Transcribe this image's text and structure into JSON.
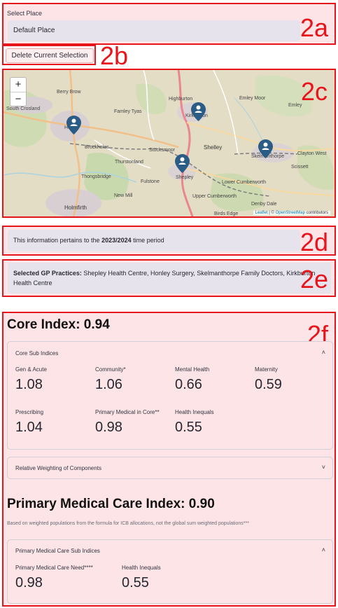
{
  "select_place": {
    "label": "Select Place",
    "value": "Default Place",
    "tag": "2a"
  },
  "delete_button": {
    "label": "Delete Current Selection",
    "tag": "2b"
  },
  "map": {
    "tag": "2c",
    "zoom_in": "+",
    "zoom_out": "−",
    "attribution": {
      "leaflet": "Leaflet",
      "sep": " | © ",
      "osm": "OpenStreetMap",
      "suffix": " contributors"
    },
    "places": [
      "Berry Brow",
      "South Crosland",
      "Highburton",
      "Emley Moor",
      "Emley",
      "Famley Tyas",
      "Kirkburton",
      "Honley",
      "Brockholes",
      "Stocksmoor",
      "Shelley",
      "Skelmanthorpe",
      "Clayton West",
      "Thurstonland",
      "Thongsbridge",
      "Fulstone",
      "Shepley",
      "Scissett",
      "Lower Cumberworth",
      "New Mill",
      "Upper Cumberworth",
      "Denby Dale",
      "Holmfirth",
      "Birds Edge"
    ],
    "marker_icon": "map-pin-person-icon",
    "markers": [
      "Honley Surgery",
      "Kirkburton Health Centre",
      "Shepley Health Centre",
      "Skelmanthorpe Family Doctors"
    ]
  },
  "time_period": {
    "prefix": "This information pertains to the ",
    "period": "2023/2024",
    "suffix": " time period",
    "tag": "2d"
  },
  "selected_practices": {
    "label": "Selected GP Practices:",
    "value": " Shepley Health Centre, Honley Surgery, Skelmanthorpe Family Doctors, Kirkburton Health Centre",
    "tag": "2e"
  },
  "core": {
    "title": "Core Index: 0.94",
    "tag": "2f",
    "sub_indices_header": "Core Sub Indices",
    "metrics": [
      {
        "label": "Gen & Acute",
        "value": "1.08"
      },
      {
        "label": "Community*",
        "value": "1.06"
      },
      {
        "label": "Mental Health",
        "value": "0.66"
      },
      {
        "label": "Maternity",
        "value": "0.59"
      },
      {
        "label": "Prescribing",
        "value": "1.04"
      },
      {
        "label": "Primary Medical in Core**",
        "value": "0.98"
      },
      {
        "label": "Health Inequals",
        "value": "0.55"
      }
    ],
    "weighting_header": "Relative Weighting of Components"
  },
  "pmc": {
    "title": "Primary Medical Care Index: 0.90",
    "note": "Based on weighted populations from the formula for ICB allocations, not the global sum weighted populations***",
    "sub_indices_header": "Primary Medical Care Sub Indices",
    "metrics": [
      {
        "label": "Primary Medical Care Need****",
        "value": "0.98"
      },
      {
        "label": "Health Inequals",
        "value": "0.55"
      }
    ]
  },
  "icons": {
    "chevron_up": "˄",
    "chevron_down": "˅"
  }
}
